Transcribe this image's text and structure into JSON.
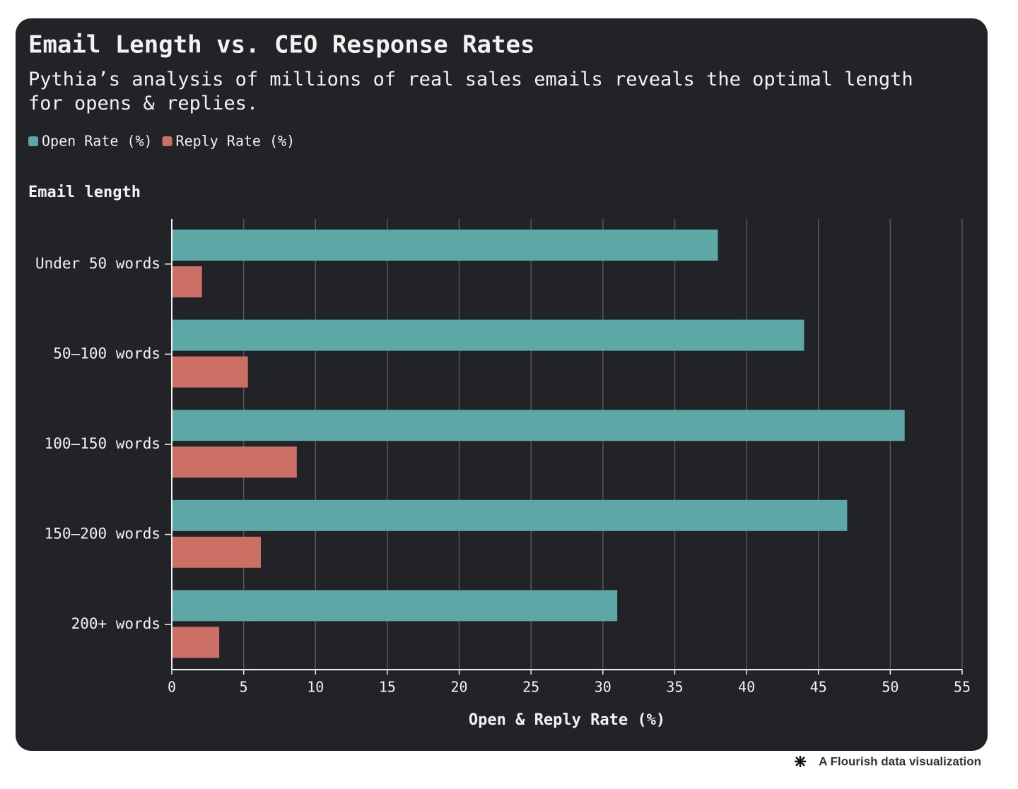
{
  "chart_data": {
    "type": "hbar",
    "title": "Email Length vs. CEO Response Rates",
    "subtitle": "Pythia’s analysis of millions of real sales emails reveals the optimal length for opens & replies.",
    "y_label": "Email length",
    "x_label": "Open & Reply Rate (%)",
    "categories": [
      "Under 50 words",
      "50–100 words",
      "100–150 words",
      "150–200 words",
      "200+ words"
    ],
    "series": [
      {
        "name": "Open Rate (%)",
        "color": "#5ea7a7",
        "values": [
          38,
          44,
          51,
          47,
          31
        ]
      },
      {
        "name": "Reply Rate (%)",
        "color": "#cc6f64",
        "values": [
          2.1,
          5.3,
          8.7,
          6.2,
          3.3
        ]
      }
    ],
    "xlim": [
      0,
      55
    ],
    "xticks": [
      0,
      5,
      10,
      15,
      20,
      25,
      30,
      35,
      40,
      45,
      50,
      55
    ],
    "grid": true,
    "legend": "top-left"
  },
  "footer": "A Flourish data visualization"
}
